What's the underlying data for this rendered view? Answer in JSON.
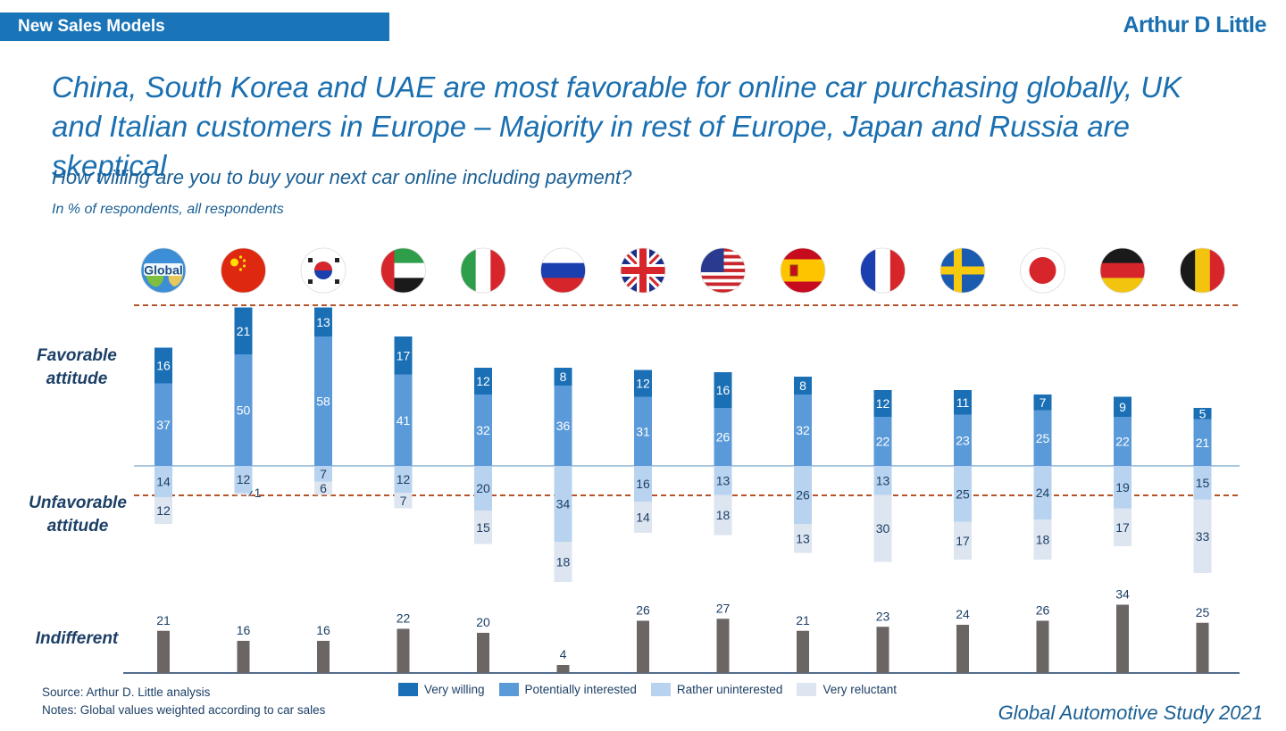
{
  "header": {
    "tag": "New Sales Models",
    "logo": "Arthur D Little"
  },
  "headline": "China, South Korea and UAE are most favorable for online car purchasing globally, UK and Italian customers in Europe – Majority in rest of Europe, Japan and Russia are skeptical",
  "chart_data": {
    "type": "bar",
    "title": "How willing are you to buy your next car online including payment?",
    "subtitle": "In % of respondents, all respondents",
    "row_labels": {
      "favorable": "Favorable attitude",
      "unfavorable": "Unfavorable attitude",
      "indifferent": "Indifferent"
    },
    "categories": [
      "Global",
      "China",
      "South Korea",
      "UAE",
      "Italy",
      "Russia",
      "UK",
      "USA",
      "Spain",
      "France",
      "Sweden",
      "Japan",
      "Germany",
      "Belgium"
    ],
    "global_badge_text": "Global",
    "series": [
      {
        "name": "Very willing",
        "color": "#1a6fb5",
        "values": [
          16,
          21,
          13,
          17,
          12,
          8,
          12,
          16,
          8,
          12,
          11,
          7,
          9,
          5
        ]
      },
      {
        "name": "Potentially interested",
        "color": "#5a9ad8",
        "values": [
          37,
          50,
          58,
          41,
          32,
          36,
          31,
          26,
          32,
          22,
          23,
          25,
          22,
          21
        ]
      },
      {
        "name": "Rather uninterested",
        "color": "#b8d3ef",
        "values": [
          14,
          12,
          7,
          12,
          20,
          34,
          16,
          13,
          26,
          13,
          25,
          24,
          19,
          15
        ]
      },
      {
        "name": "Very reluctant",
        "color": "#dde5f0",
        "values": [
          12,
          1,
          6,
          7,
          15,
          18,
          14,
          18,
          13,
          30,
          17,
          18,
          17,
          33
        ]
      },
      {
        "name": "Indifferent",
        "color": "#6b6563",
        "values": [
          21,
          16,
          16,
          22,
          20,
          4,
          26,
          27,
          21,
          23,
          24,
          26,
          34,
          25
        ]
      }
    ],
    "legend": [
      "Very willing",
      "Potentially interested",
      "Rather uninterested",
      "Very reluctant"
    ]
  },
  "source": "Source: Arthur D. Little analysis",
  "notes": "Notes: Global values weighted according to car sales",
  "footer": "Global Automotive Study 2021",
  "colors": {
    "brand_blue": "#1a74b8",
    "dashed_line": "#b5532a",
    "baseline": "#8db6d6"
  }
}
